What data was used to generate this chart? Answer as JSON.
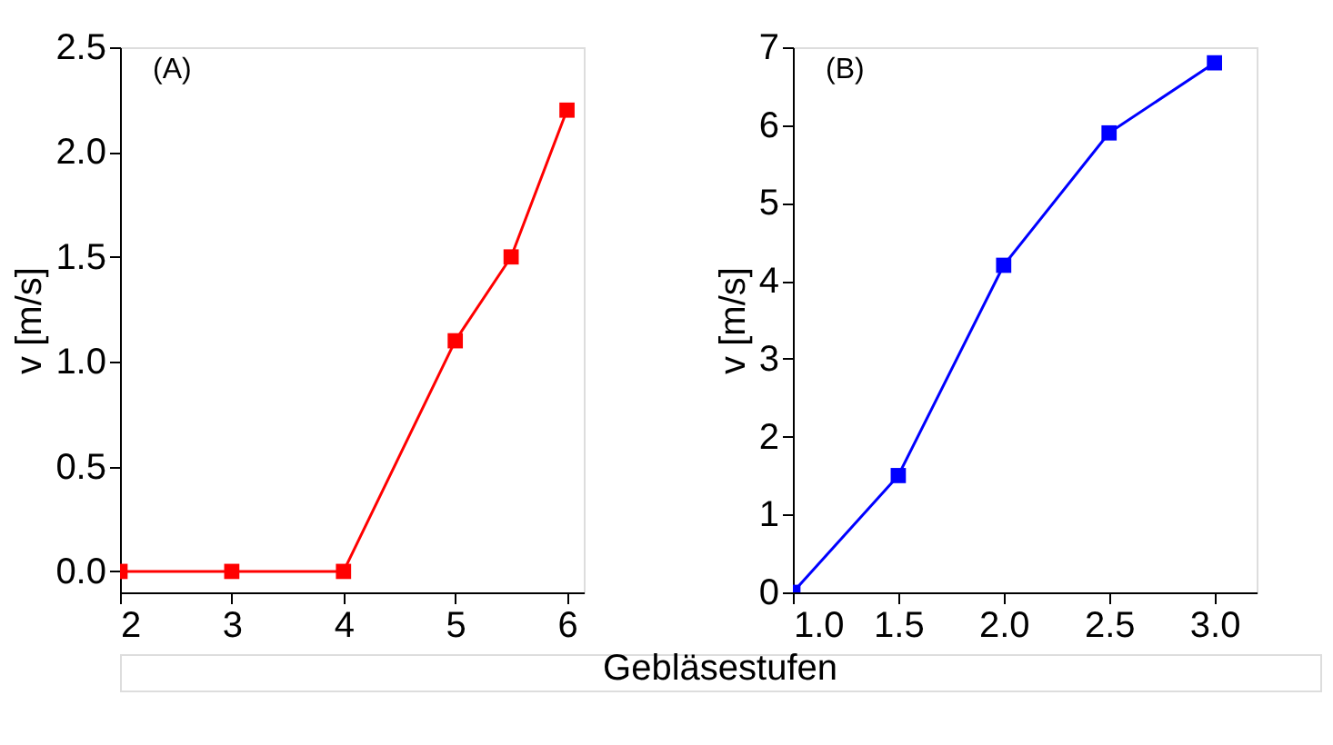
{
  "chart_data": [
    {
      "type": "line",
      "x": [
        2,
        3,
        4,
        5,
        5.5,
        6
      ],
      "series": [
        {
          "color": "#ff0000",
          "values": [
            0,
            0,
            0,
            1.1,
            1.5,
            2.2
          ]
        }
      ],
      "xlim": [
        2,
        6.15
      ],
      "ylim": [
        -0.1,
        2.5
      ],
      "xticks": [
        2,
        3,
        4,
        5,
        6
      ],
      "yticks": [
        {
          "value": 0,
          "label": "0.0"
        },
        {
          "value": 0.5,
          "label": "0.5"
        },
        {
          "value": 1,
          "label": "1.0"
        },
        {
          "value": 1.5,
          "label": "1.5"
        },
        {
          "value": 2,
          "label": "2.0"
        },
        {
          "value": 2.5,
          "label": "2.5"
        }
      ],
      "ylabel": "v [m/s]",
      "xlabel": "Gebläsestufen",
      "annotations": [
        "(A)"
      ],
      "marker": "square",
      "line_style": "solid",
      "grid": false
    },
    {
      "type": "line",
      "x": [
        1,
        1.5,
        2,
        2.5,
        3
      ],
      "series": [
        {
          "color": "#0000ff",
          "values": [
            0,
            1.5,
            4.2,
            5.9,
            6.8
          ]
        }
      ],
      "xlim": [
        1,
        3.2
      ],
      "ylim": [
        0,
        7
      ],
      "xticks": [
        {
          "value": 1,
          "label": "1.0"
        },
        {
          "value": 1.5,
          "label": "1.5"
        },
        {
          "value": 2,
          "label": "2.0"
        },
        {
          "value": 2.5,
          "label": "2.5"
        },
        {
          "value": 3,
          "label": "3.0"
        }
      ],
      "yticks": [
        0,
        1,
        2,
        3,
        4,
        5,
        6,
        7
      ],
      "ylabel": "v [m/s]",
      "annotations": [
        "(B)"
      ],
      "marker": "square",
      "line_style": "solid",
      "grid": false
    }
  ]
}
